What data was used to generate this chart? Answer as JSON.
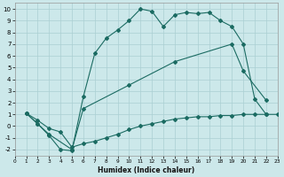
{
  "xlabel": "Humidex (Indice chaleur)",
  "xlim": [
    0,
    23
  ],
  "ylim": [
    -2.5,
    10.5
  ],
  "xticks": [
    0,
    1,
    2,
    3,
    4,
    5,
    6,
    7,
    8,
    9,
    10,
    11,
    12,
    13,
    14,
    15,
    16,
    17,
    18,
    19,
    20,
    21,
    22,
    23
  ],
  "yticks": [
    -2,
    -1,
    0,
    1,
    2,
    3,
    4,
    5,
    6,
    7,
    8,
    9,
    10
  ],
  "bg_color": "#cce8ea",
  "grid_color": "#aacfd2",
  "line_color": "#1b6b62",
  "line1_x": [
    1,
    2,
    3,
    4,
    5,
    6,
    7,
    8,
    9,
    10,
    11,
    12,
    13,
    14,
    15,
    16,
    17,
    18,
    19,
    20,
    21,
    22
  ],
  "line1_y": [
    1.1,
    0.2,
    -0.8,
    -2.0,
    -2.1,
    2.5,
    6.2,
    7.5,
    8.2,
    9.0,
    10.0,
    9.8,
    8.5,
    9.5,
    9.7,
    9.6,
    9.7,
    9.0,
    8.5,
    7.0,
    2.3,
    1.0
  ],
  "line2_x": [
    1,
    2,
    3,
    5,
    6,
    10,
    14,
    19,
    20,
    22
  ],
  "line2_y": [
    1.1,
    0.2,
    -0.7,
    -2.0,
    1.5,
    3.5,
    5.5,
    7.0,
    4.7,
    2.2
  ],
  "line3_x": [
    1,
    2,
    3,
    4,
    5,
    6,
    7,
    8,
    9,
    10,
    11,
    12,
    13,
    14,
    15,
    16,
    17,
    18,
    19,
    20,
    21,
    22,
    23
  ],
  "line3_y": [
    1.1,
    0.5,
    -0.2,
    -0.5,
    -1.8,
    -1.5,
    -1.3,
    -1.0,
    -0.7,
    -0.3,
    0.0,
    0.2,
    0.4,
    0.6,
    0.7,
    0.8,
    0.8,
    0.9,
    0.9,
    1.0,
    1.0,
    1.0,
    1.0
  ]
}
